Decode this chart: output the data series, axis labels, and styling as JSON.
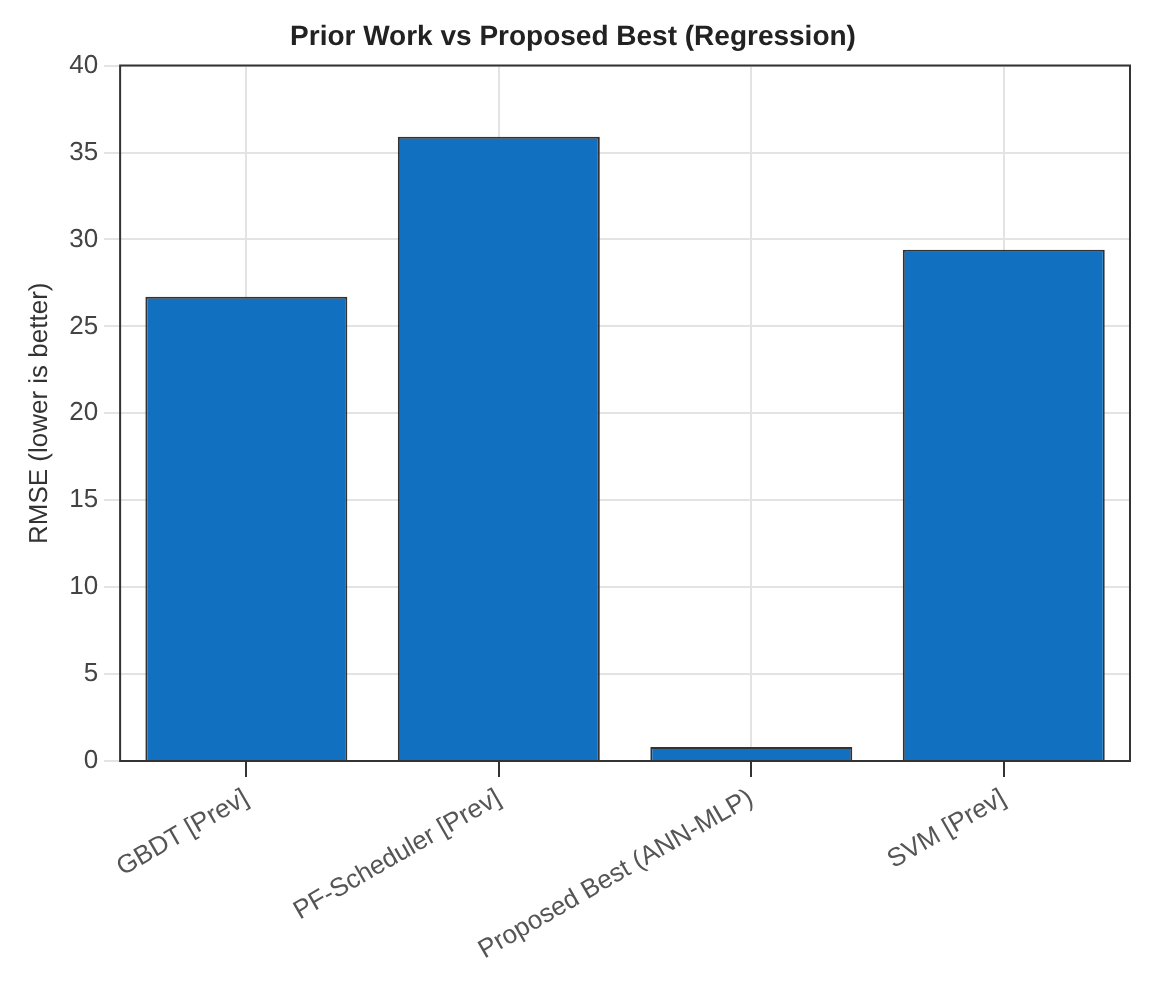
{
  "chart_data": {
    "type": "bar",
    "title": "Prior Work vs Proposed Best (Regression)",
    "ylabel": "RMSE (lower is better)",
    "categories": [
      "GBDT [Prev]",
      "PF-Scheduler [Prev]",
      "Proposed Best (ANN-MLP)",
      "SVM [Prev]"
    ],
    "values": [
      26.7,
      35.9,
      0.8,
      29.4
    ],
    "color": "#1170bf",
    "ylim": [
      0,
      40
    ],
    "yticks": [
      0,
      5,
      10,
      15,
      20,
      25,
      30,
      35,
      40
    ],
    "grid": true,
    "legend": false
  }
}
